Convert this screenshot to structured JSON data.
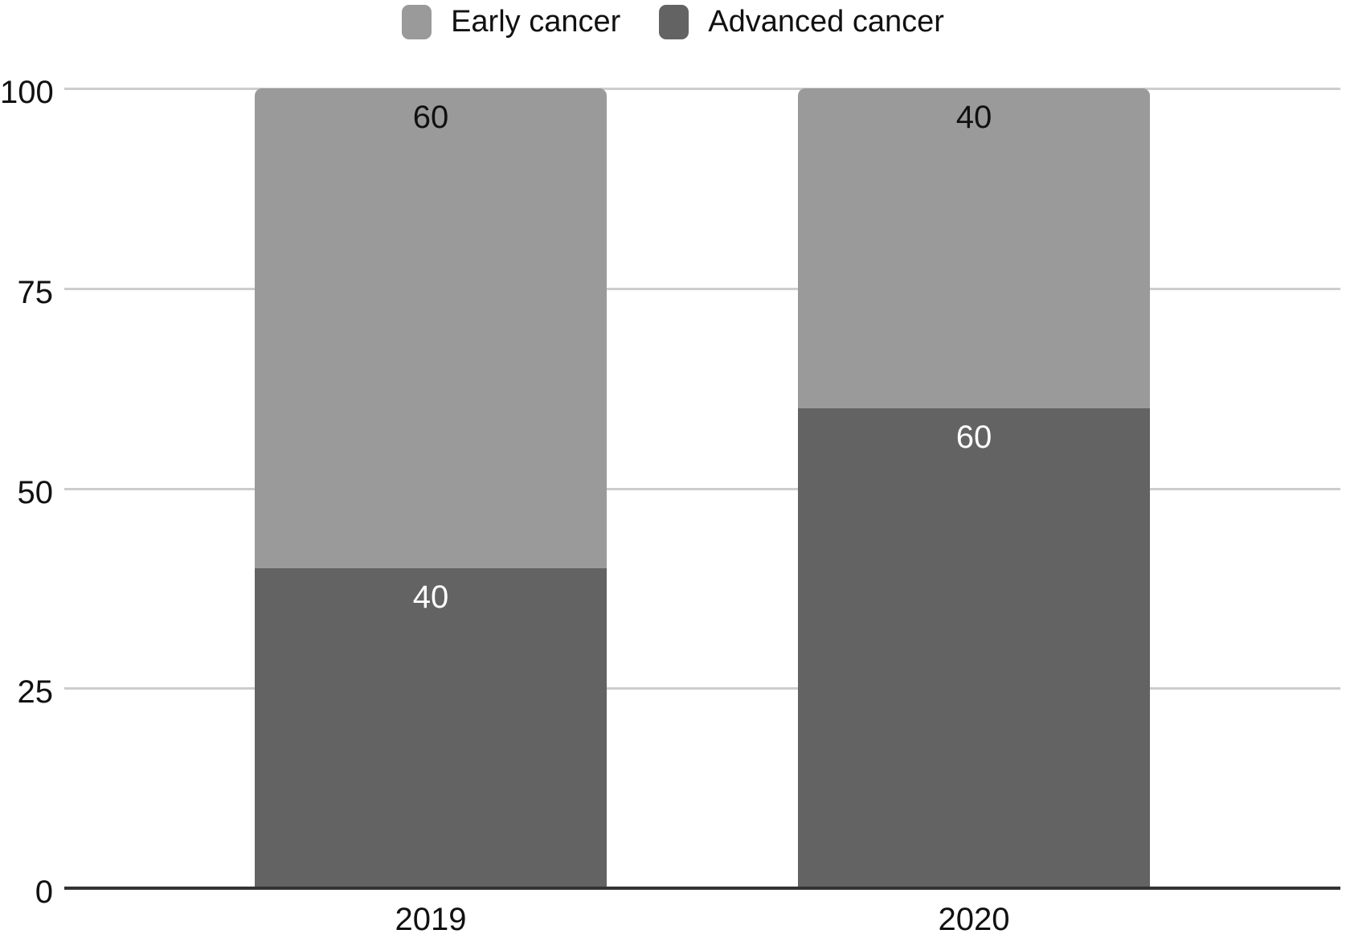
{
  "chart_data": {
    "type": "bar",
    "stacked": true,
    "title": "",
    "xlabel": "",
    "ylabel": "",
    "categories": [
      "2019",
      "2020"
    ],
    "series": [
      {
        "name": "Advanced cancer",
        "color": "#636363",
        "label_color": "#ffffff",
        "values": [
          40,
          60
        ]
      },
      {
        "name": "Early cancer",
        "color": "#9a9a9a",
        "label_color": "#111111",
        "values": [
          60,
          40
        ]
      }
    ],
    "legend": [
      {
        "label": "Early cancer",
        "color": "#9a9a9a"
      },
      {
        "label": "Advanced cancer",
        "color": "#636363"
      }
    ],
    "legend_position": "top",
    "grid": true,
    "y_axis": {
      "min": 0,
      "max": 100,
      "ticks": [
        0,
        25,
        50,
        75,
        100
      ]
    },
    "colors": {
      "gridline": "#cdcdcd",
      "axis_line": "#333333",
      "text": "#111111",
      "background": "#ffffff"
    }
  }
}
